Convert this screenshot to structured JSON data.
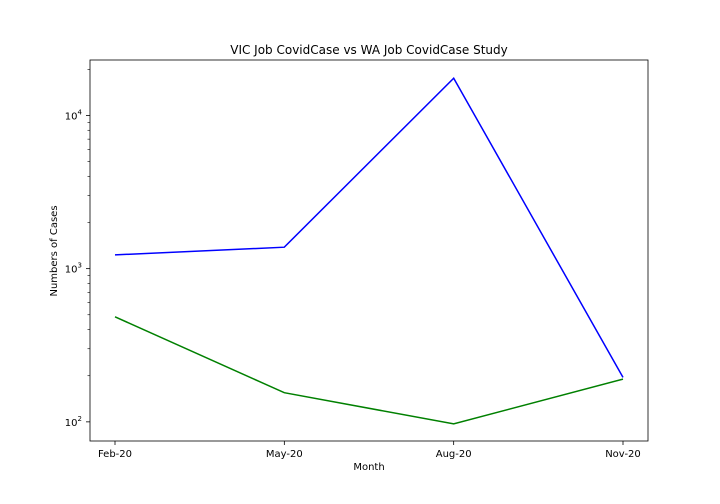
{
  "chart_data": {
    "type": "line",
    "title": "VIC Job CovidCase vs WA Job CovidCase Study",
    "xlabel": "Month",
    "ylabel": "Numbers of Cases",
    "categories": [
      "Feb-20",
      "May-20",
      "Aug-20",
      "Nov-20"
    ],
    "yscale": "log",
    "ylim": [
      75,
      23000
    ],
    "yticks": [
      {
        "value": 100,
        "base": "10",
        "exp": "2"
      },
      {
        "value": 1000,
        "base": "10",
        "exp": "3"
      },
      {
        "value": 10000,
        "base": "10",
        "exp": "4"
      }
    ],
    "grid": false,
    "series": [
      {
        "values": [
          1230,
          1380,
          17500,
          195
        ],
        "color": "#0000ff"
      },
      {
        "values": [
          485,
          155,
          97,
          190
        ],
        "color": "#008000"
      }
    ]
  }
}
